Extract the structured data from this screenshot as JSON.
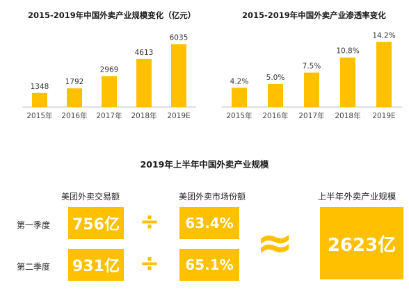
{
  "chart_data": [
    {
      "type": "bar",
      "title": "2015-2019年中国外卖产业规模变化（亿元）",
      "categories": [
        "2015年",
        "2016年",
        "2017年",
        "2018年",
        "2019E"
      ],
      "values": [
        1348,
        1792,
        2969,
        4613,
        6035
      ],
      "value_labels": [
        "1348",
        "1792",
        "2969",
        "4613",
        "6035"
      ],
      "ylim": [
        0,
        6400
      ],
      "grid": false,
      "color": "#ffc000"
    },
    {
      "type": "bar",
      "title": "2015-2019年中国外卖产业渗透率变化",
      "categories": [
        "2015年",
        "2016年",
        "2017年",
        "2018年",
        "2019E"
      ],
      "values": [
        4.2,
        5.0,
        7.5,
        10.8,
        14.2
      ],
      "value_labels": [
        "4.2%",
        "5.0%",
        "7.5%",
        "10.8%",
        "14.2%"
      ],
      "ylim": [
        0,
        15.0
      ],
      "grid": false,
      "color": "#ffc000"
    }
  ],
  "summary": {
    "title": "2019年上半年中国外卖产业规模",
    "col_transaction": "美团外卖交易额",
    "col_share": "美团外卖市场份额",
    "col_result": "上半年外卖产业规模",
    "rows": [
      {
        "label": "第一季度",
        "transaction": "756亿",
        "share": "63.4%"
      },
      {
        "label": "第二季度",
        "transaction": "931亿",
        "share": "65.1%"
      }
    ],
    "divide_symbol": "÷",
    "approx_symbol": "≈",
    "result": "2623亿",
    "accent_color": "#ffc000"
  }
}
